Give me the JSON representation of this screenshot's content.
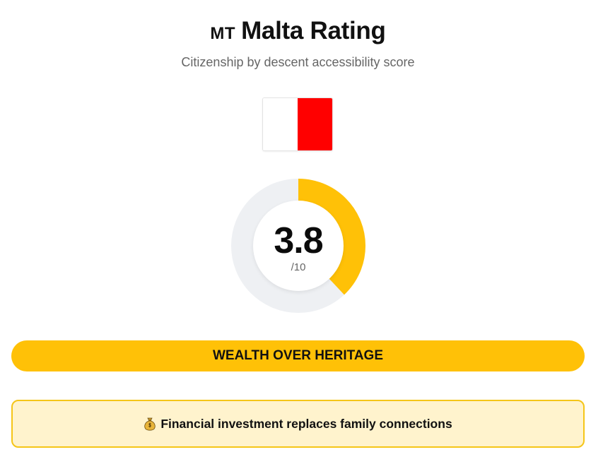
{
  "header": {
    "country_code": "MT",
    "title": "Malta Rating",
    "subtitle": "Citizenship by descent accessibility score"
  },
  "flag": {
    "icon": "malta-flag-icon",
    "colors": [
      "#ffffff",
      "#ff0000"
    ]
  },
  "score": {
    "value": "3.8",
    "max_label": "/10",
    "fraction": 0.38,
    "fill_color": "#ffc107",
    "track_color": "#eef0f3"
  },
  "verdict": {
    "label": "WEALTH OVER HERITAGE",
    "color": "#ffc107"
  },
  "note": {
    "icon": "money-bag-icon",
    "text": "Financial investment replaces family connections",
    "background": "#fff3cd",
    "border_color": "#f5c518"
  }
}
